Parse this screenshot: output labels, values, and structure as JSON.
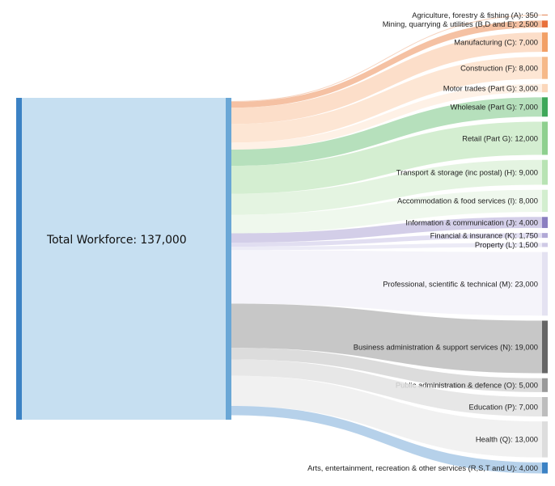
{
  "diagram": {
    "total": {
      "label": "Total Workforce: 137,000",
      "value": 137000
    },
    "sectors": [
      {
        "label": "Agriculture, forestry & fishing (A): 350",
        "value": 350,
        "color": "#e8936a",
        "band": "#f6cbb3"
      },
      {
        "label": "Mining, quarrying & utilities (B,D and E): 2,500",
        "value": 2500,
        "color": "#e8703a",
        "band": "#f3b693"
      },
      {
        "label": "Manufacturing (C): 7,000",
        "value": 7000,
        "color": "#f2a066",
        "band": "#fbd8bf"
      },
      {
        "label": "Construction (F): 8,000",
        "value": 8000,
        "color": "#f6b989",
        "band": "#fde2cd"
      },
      {
        "label": "Motor trades (Part G): 3,000",
        "value": 3000,
        "color": "#fbd7bb",
        "band": "#feeee2"
      },
      {
        "label": "Wholesale (Part G): 7,000",
        "value": 7000,
        "color": "#3fa85a",
        "band": "#a9dbb0"
      },
      {
        "label": "Retail (Part G): 12,000",
        "value": 12000,
        "color": "#8fd08f",
        "band": "#cdebc9"
      },
      {
        "label": "Transport & storage (inc postal) (H): 9,000",
        "value": 9000,
        "color": "#b8e3b3",
        "band": "#dff2dc"
      },
      {
        "label": "Accommodation & food services (I): 8,000",
        "value": 8000,
        "color": "#d3eecf",
        "band": "#ecf7ea"
      },
      {
        "label": "Information & communication (J): 4,000",
        "value": 4000,
        "color": "#8b7fc0",
        "band": "#cbc5e4"
      },
      {
        "label": "Financial & insurance (K): 1,750",
        "value": 1750,
        "color": "#b1a9d6",
        "band": "#dcd8ee"
      },
      {
        "label": "Property (L): 1,500",
        "value": 1500,
        "color": "#cfcae6",
        "band": "#e9e7f4"
      },
      {
        "label": "Professional, scientific & technical (M): 23,000",
        "value": 23000,
        "color": "#e4e2f1",
        "band": "#f3f2f9"
      },
      {
        "label": "Business administration & support services (N): 19,000",
        "value": 19000,
        "color": "#666666",
        "band": "#bdbdbd"
      },
      {
        "label": "Public administration & defence (O): 5,000",
        "value": 5000,
        "color": "#999999",
        "band": "#d6d6d6"
      },
      {
        "label": "Education (P): 7,000",
        "value": 7000,
        "color": "#bdbdbd",
        "band": "#e3e3e3"
      },
      {
        "label": "Health (Q): 13,000",
        "value": 13000,
        "color": "#dddddd",
        "band": "#efefef"
      },
      {
        "label": "Arts, entertainment, recreation & other services (R,S,T and U): 4,000",
        "value": 4000,
        "color": "#3b82c4",
        "band": "#a9c9e6"
      }
    ]
  }
}
